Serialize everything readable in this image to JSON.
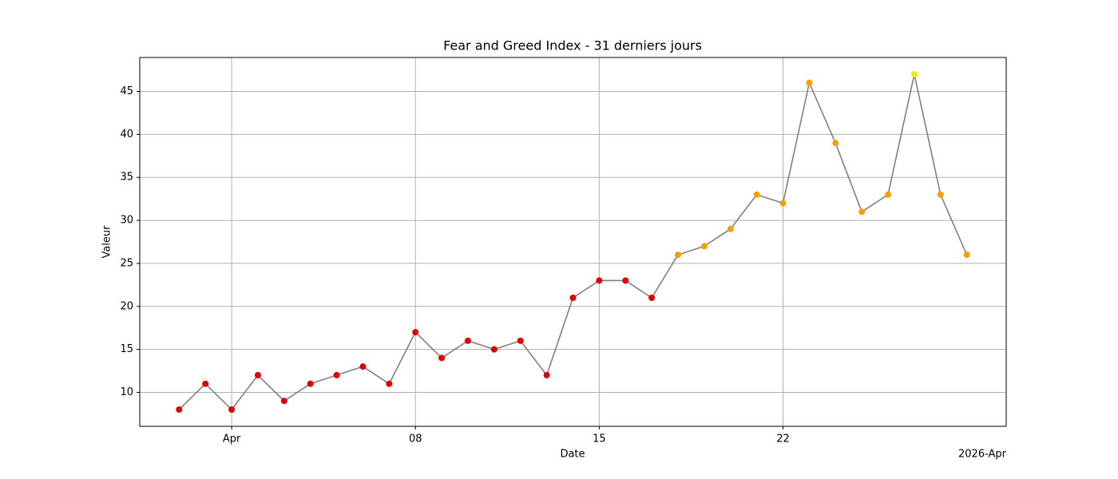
{
  "chart_data": {
    "type": "line",
    "title": "Fear and Greed Index - 31 derniers jours",
    "x_label": "Date",
    "y_label": "Valeur",
    "x_offset_label": "2026-Apr",
    "x": [
      "2026-03-30",
      "2026-03-31",
      "2026-04-01",
      "2026-04-02",
      "2026-04-03",
      "2026-04-04",
      "2026-04-05",
      "2026-04-06",
      "2026-04-07",
      "2026-04-08",
      "2026-04-09",
      "2026-04-10",
      "2026-04-11",
      "2026-04-12",
      "2026-04-13",
      "2026-04-14",
      "2026-04-15",
      "2026-04-16",
      "2026-04-17",
      "2026-04-18",
      "2026-04-19",
      "2026-04-20",
      "2026-04-21",
      "2026-04-22",
      "2026-04-23",
      "2026-04-24",
      "2026-04-25",
      "2026-04-26",
      "2026-04-27",
      "2026-04-28",
      "2026-04-29"
    ],
    "series": [
      {
        "color": "#808080",
        "values": [
          8,
          11,
          8,
          12,
          9,
          11,
          12,
          13,
          11,
          17,
          14,
          16,
          15,
          16,
          12,
          21,
          23,
          23,
          21,
          26,
          27,
          29,
          33,
          32,
          46,
          39,
          31,
          33,
          47,
          33,
          26
        ],
        "colors": [
          "#e00000",
          "#e00000",
          "#e00000",
          "#e00000",
          "#e00000",
          "#e00000",
          "#e00000",
          "#e00000",
          "#e00000",
          "#e00000",
          "#e00000",
          "#e00000",
          "#e00000",
          "#e00000",
          "#e00000",
          "#e00000",
          "#e00000",
          "#e00000",
          "#e00000",
          "#f5a000",
          "#f5a000",
          "#f5a000",
          "#f5a000",
          "#f5a000",
          "#f5a000",
          "#f5a000",
          "#f5a000",
          "#f5a000",
          "#f0f000",
          "#f5a000",
          "#f5a000"
        ]
      }
    ],
    "xlim": [
      "2026-03-28T12:00:00Z",
      "2026-04-30T12:00:00Z"
    ],
    "xticks": [
      {
        "value": "2026-04-01",
        "label": "Apr"
      },
      {
        "value": "2026-04-08",
        "label": "08"
      },
      {
        "value": "2026-04-15",
        "label": "15"
      },
      {
        "value": "2026-04-22",
        "label": "22"
      }
    ],
    "ylim": [
      6.05,
      48.95
    ],
    "yticks": [
      10,
      15,
      20,
      25,
      30,
      35,
      40,
      45
    ],
    "grid": true
  }
}
